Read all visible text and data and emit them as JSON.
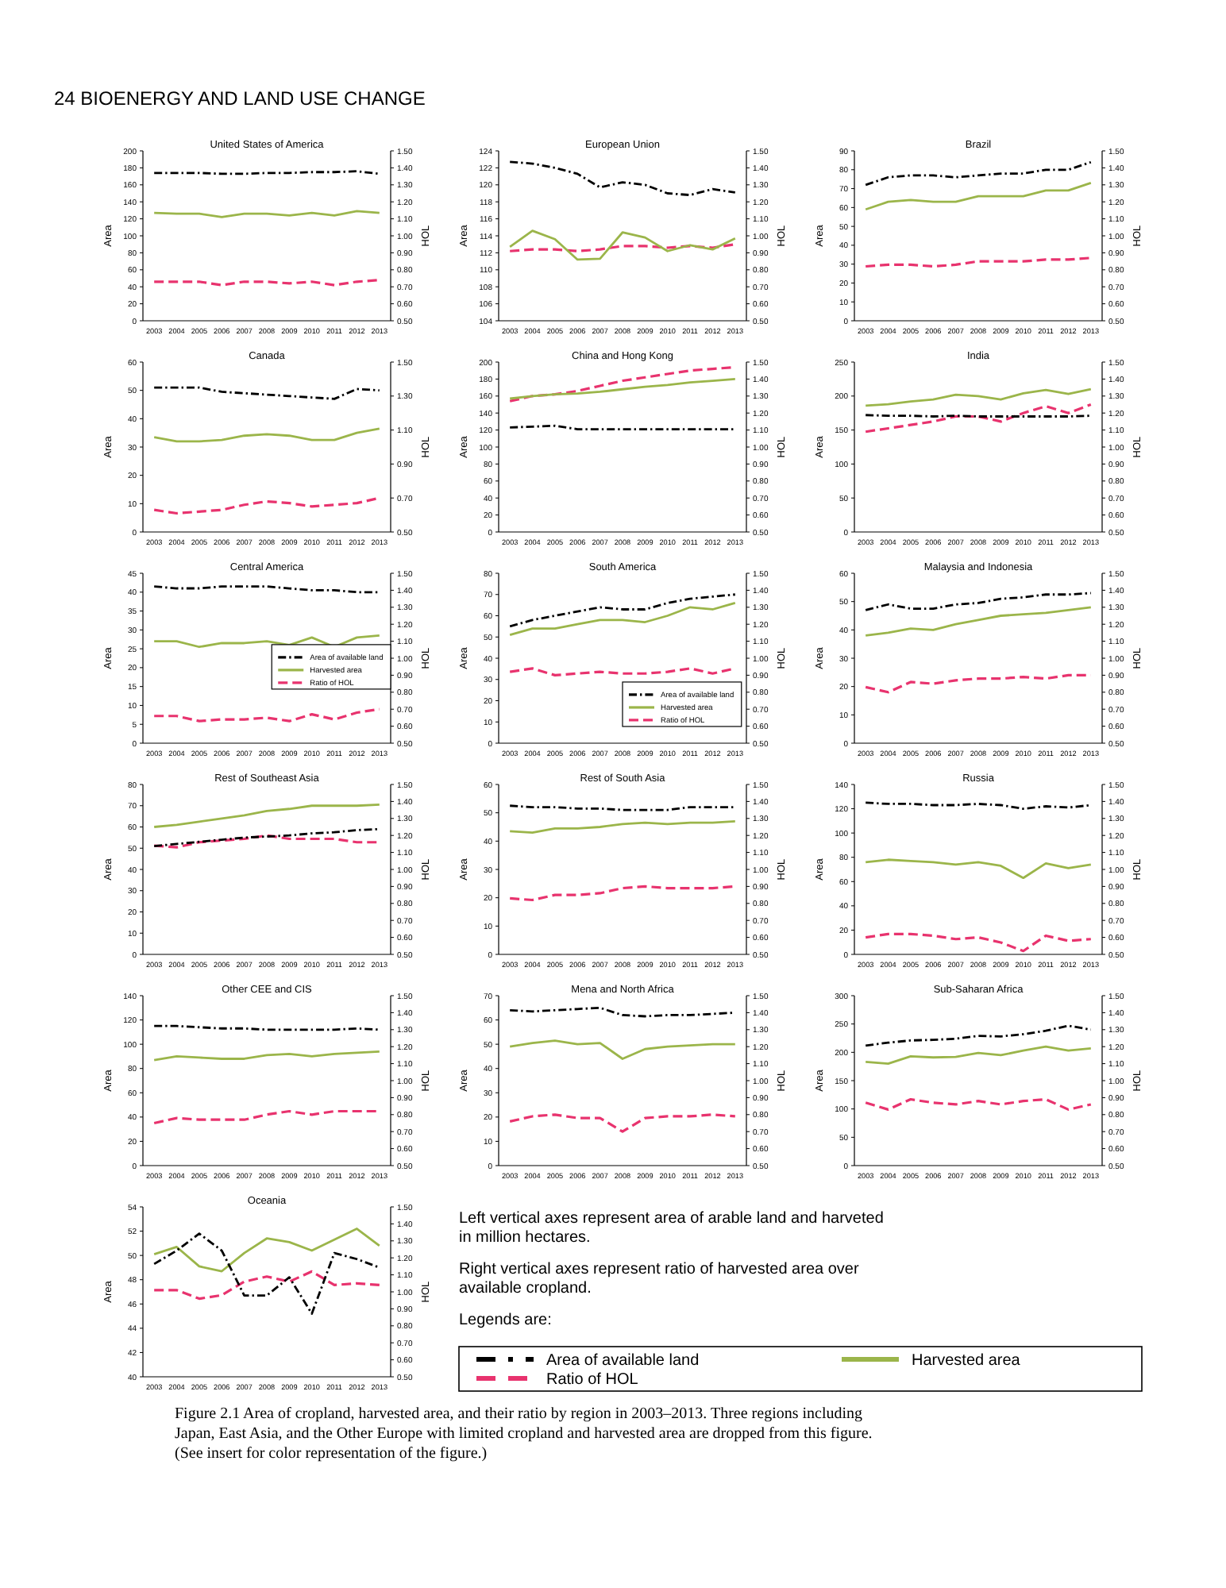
{
  "chart_data": [
    {
      "type": "line",
      "title": "United States of America",
      "categories": [
        "2003",
        "2004",
        "2005",
        "2006",
        "2007",
        "2008",
        "2009",
        "2010",
        "2011",
        "2012",
        "2013"
      ],
      "ylabel": "Area",
      "y2label": "HOL",
      "ylim": [
        0,
        200
      ],
      "yticks": [
        0,
        20,
        40,
        60,
        80,
        100,
        120,
        140,
        160,
        180,
        200
      ],
      "y2lim": [
        0.5,
        1.5
      ],
      "y2ticks": [
        {
          "value": 0.5,
          "label": "0.50"
        },
        {
          "value": 0.6,
          "label": "0.60"
        },
        {
          "value": 0.7,
          "label": "0.70"
        },
        {
          "value": 0.8,
          "label": "0.80"
        },
        {
          "value": 0.9,
          "label": "0.90"
        },
        {
          "value": 1.0,
          "label": "1.00"
        },
        {
          "value": 1.1,
          "label": "1.10"
        },
        {
          "value": 1.2,
          "label": "1.20"
        },
        {
          "value": 1.3,
          "label": "1.30"
        },
        {
          "value": 1.4,
          "label": "1.40"
        },
        {
          "value": 1.5,
          "label": "1.50"
        }
      ],
      "series": [
        {
          "color": "#000000",
          "line_style": "dashdot",
          "values": [
            174,
            174,
            174,
            173,
            173,
            174,
            174,
            175,
            175,
            176,
            173
          ]
        },
        {
          "color": "#9bb54a",
          "line_style": "solid",
          "values": [
            127,
            126,
            126,
            122,
            126,
            126,
            124,
            127,
            124,
            129,
            127
          ]
        },
        {
          "color": "#e8336e",
          "line_style": "dashed",
          "axis": "y2",
          "values": [
            0.73,
            0.73,
            0.73,
            0.71,
            0.73,
            0.73,
            0.72,
            0.73,
            0.71,
            0.73,
            0.74
          ]
        }
      ]
    },
    {
      "type": "line",
      "title": "European Union",
      "categories": [
        "2003",
        "2004",
        "2005",
        "2006",
        "2007",
        "2008",
        "2009",
        "2010",
        "2011",
        "2012",
        "2013"
      ],
      "ylabel": "Area",
      "y2label": "HOL",
      "ylim": [
        104,
        124
      ],
      "yticks": [
        104,
        106,
        108,
        110,
        112,
        114,
        116,
        118,
        120,
        122,
        124
      ],
      "y2lim": [
        0.5,
        1.5
      ],
      "y2ticks": [
        {
          "value": 0.5,
          "label": "0.50"
        },
        {
          "value": 0.6,
          "label": "0.60"
        },
        {
          "value": 0.7,
          "label": "0.70"
        },
        {
          "value": 0.8,
          "label": "0.80"
        },
        {
          "value": 0.9,
          "label": "0.90"
        },
        {
          "value": 1.0,
          "label": "1.00"
        },
        {
          "value": 1.1,
          "label": "1.10"
        },
        {
          "value": 1.2,
          "label": "1.20"
        },
        {
          "value": 1.3,
          "label": "1.30"
        },
        {
          "value": 1.4,
          "label": "1.40"
        },
        {
          "value": 1.5,
          "label": "1.50"
        }
      ],
      "series": [
        {
          "color": "#000000",
          "line_style": "dashdot",
          "values": [
            122.7,
            122.5,
            122,
            121.3,
            119.7,
            120.3,
            120,
            119,
            118.8,
            119.5,
            119.1
          ]
        },
        {
          "color": "#9bb54a",
          "line_style": "solid",
          "values": [
            112.7,
            114.6,
            113.6,
            111.2,
            111.3,
            114.4,
            113.8,
            112.2,
            112.9,
            112.4,
            113.7
          ]
        },
        {
          "color": "#e8336e",
          "line_style": "dashed",
          "axis": "y2",
          "values": [
            0.91,
            0.92,
            0.92,
            0.91,
            0.92,
            0.94,
            0.94,
            0.93,
            0.94,
            0.93,
            0.95
          ]
        }
      ]
    },
    {
      "type": "line",
      "title": "Brazil",
      "categories": [
        "2003",
        "2004",
        "2005",
        "2006",
        "2007",
        "2008",
        "2009",
        "2010",
        "2011",
        "2012",
        "2013"
      ],
      "ylabel": "Area",
      "y2label": "HOL",
      "ylim": [
        0,
        90
      ],
      "yticks": [
        0,
        10,
        20,
        30,
        40,
        50,
        60,
        70,
        80,
        90
      ],
      "y2lim": [
        0.5,
        1.5
      ],
      "y2ticks": [
        {
          "value": 0.5,
          "label": "0.50"
        },
        {
          "value": 0.6,
          "label": "0.60"
        },
        {
          "value": 0.7,
          "label": "0.70"
        },
        {
          "value": 0.8,
          "label": "0.80"
        },
        {
          "value": 0.9,
          "label": "0.90"
        },
        {
          "value": 1.0,
          "label": "1.00"
        },
        {
          "value": 1.1,
          "label": "1.10"
        },
        {
          "value": 1.2,
          "label": "1.20"
        },
        {
          "value": 1.3,
          "label": "1.30"
        },
        {
          "value": 1.4,
          "label": "1.40"
        },
        {
          "value": 1.5,
          "label": "1.50"
        }
      ],
      "series": [
        {
          "color": "#000000",
          "line_style": "dashdot",
          "values": [
            72,
            76,
            77,
            77,
            76,
            77,
            78,
            78,
            80,
            80,
            84
          ]
        },
        {
          "color": "#9bb54a",
          "line_style": "solid",
          "values": [
            59,
            63,
            64,
            63,
            63,
            66,
            66,
            66,
            69,
            69,
            73
          ]
        },
        {
          "color": "#e8336e",
          "line_style": "dashed",
          "axis": "y2",
          "values": [
            0.82,
            0.83,
            0.83,
            0.82,
            0.83,
            0.85,
            0.85,
            0.85,
            0.86,
            0.86,
            0.87
          ]
        }
      ]
    },
    {
      "type": "line",
      "title": "Canada",
      "categories": [
        "2003",
        "2004",
        "2005",
        "2006",
        "2007",
        "2008",
        "2009",
        "2010",
        "2011",
        "2012",
        "2013"
      ],
      "ylabel": "Area",
      "y2label": "HOL",
      "ylim": [
        0,
        60
      ],
      "yticks": [
        0,
        10,
        20,
        30,
        40,
        50,
        60
      ],
      "y2lim": [
        0.5,
        1.5
      ],
      "y2ticks": [
        {
          "value": 0.5,
          "label": "0.50"
        },
        {
          "value": 0.7,
          "label": "0.70"
        },
        {
          "value": 0.9,
          "label": "0.90"
        },
        {
          "value": 1.1,
          "label": "1.10"
        },
        {
          "value": 1.3,
          "label": "1.30"
        },
        {
          "value": 1.5,
          "label": "1.50"
        }
      ],
      "series": [
        {
          "color": "#000000",
          "line_style": "dashdot",
          "values": [
            51,
            51,
            51,
            49.5,
            49,
            48.5,
            48,
            47.5,
            47,
            50.5,
            50
          ]
        },
        {
          "color": "#9bb54a",
          "line_style": "solid",
          "values": [
            33.5,
            32,
            32,
            32.5,
            34,
            34.5,
            34,
            32.5,
            32.5,
            35,
            36.5
          ]
        },
        {
          "color": "#e8336e",
          "line_style": "dashed",
          "axis": "y2",
          "values": [
            0.63,
            0.61,
            0.62,
            0.63,
            0.66,
            0.68,
            0.67,
            0.65,
            0.66,
            0.67,
            0.7
          ]
        }
      ]
    },
    {
      "type": "line",
      "title": "China and Hong Kong",
      "categories": [
        "2003",
        "2004",
        "2005",
        "2006",
        "2007",
        "2008",
        "2009",
        "2010",
        "2011",
        "2012",
        "2013"
      ],
      "ylabel": "Area",
      "y2label": "HOL",
      "ylim": [
        0,
        200
      ],
      "yticks": [
        0,
        20,
        40,
        60,
        80,
        100,
        120,
        140,
        160,
        180,
        200
      ],
      "y2lim": [
        0.5,
        1.5
      ],
      "y2ticks": [
        {
          "value": 0.5,
          "label": "0.50"
        },
        {
          "value": 0.6,
          "label": "0.60"
        },
        {
          "value": 0.7,
          "label": "0.70"
        },
        {
          "value": 0.8,
          "label": "0.80"
        },
        {
          "value": 0.9,
          "label": "0.90"
        },
        {
          "value": 1.0,
          "label": "1.00"
        },
        {
          "value": 1.1,
          "label": "1.10"
        },
        {
          "value": 1.2,
          "label": "1.20"
        },
        {
          "value": 1.3,
          "label": "1.30"
        },
        {
          "value": 1.4,
          "label": "1.40"
        },
        {
          "value": 1.5,
          "label": "1.50"
        }
      ],
      "series": [
        {
          "color": "#000000",
          "line_style": "dashdot",
          "values": [
            123,
            124,
            125,
            121,
            121,
            121,
            121,
            121,
            121,
            121,
            121
          ]
        },
        {
          "color": "#9bb54a",
          "line_style": "solid",
          "values": [
            157,
            160,
            162,
            163,
            165,
            168,
            171,
            173,
            176,
            178,
            180
          ]
        },
        {
          "color": "#e8336e",
          "line_style": "dashed",
          "axis": "y2",
          "values": [
            1.27,
            1.3,
            1.31,
            1.33,
            1.36,
            1.39,
            1.41,
            1.43,
            1.45,
            1.46,
            1.47
          ]
        }
      ]
    },
    {
      "type": "line",
      "title": "India",
      "categories": [
        "2003",
        "2004",
        "2005",
        "2006",
        "2007",
        "2008",
        "2009",
        "2010",
        "2011",
        "2012",
        "2013"
      ],
      "ylabel": "Area",
      "y2label": "HOL",
      "ylim": [
        0,
        250
      ],
      "yticks": [
        0,
        50,
        100,
        150,
        200,
        250
      ],
      "y2lim": [
        0.5,
        1.5
      ],
      "y2ticks": [
        {
          "value": 0.5,
          "label": "0.50"
        },
        {
          "value": 0.6,
          "label": "0.60"
        },
        {
          "value": 0.7,
          "label": "0.70"
        },
        {
          "value": 0.8,
          "label": "0.80"
        },
        {
          "value": 0.9,
          "label": "0.90"
        },
        {
          "value": 1.0,
          "label": "1.00"
        },
        {
          "value": 1.1,
          "label": "1.10"
        },
        {
          "value": 1.2,
          "label": "1.20"
        },
        {
          "value": 1.3,
          "label": "1.30"
        },
        {
          "value": 1.4,
          "label": "1.40"
        },
        {
          "value": 1.5,
          "label": "1.50"
        }
      ],
      "series": [
        {
          "color": "#000000",
          "line_style": "dashdot",
          "values": [
            172,
            171,
            171,
            170,
            171,
            170,
            170,
            170,
            170,
            170,
            171
          ]
        },
        {
          "color": "#9bb54a",
          "line_style": "solid",
          "values": [
            186,
            188,
            192,
            195,
            202,
            200,
            195,
            204,
            209,
            203,
            210
          ]
        },
        {
          "color": "#e8336e",
          "line_style": "dashed",
          "axis": "y2",
          "values": [
            1.09,
            1.11,
            1.13,
            1.15,
            1.18,
            1.18,
            1.15,
            1.2,
            1.24,
            1.2,
            1.25
          ]
        }
      ]
    },
    {
      "type": "line",
      "title": "Central America",
      "categories": [
        "2003",
        "2004",
        "2005",
        "2006",
        "2007",
        "2008",
        "2009",
        "2010",
        "2011",
        "2012",
        "2013"
      ],
      "ylabel": "Area",
      "y2label": "HOL",
      "ylim": [
        0,
        45
      ],
      "yticks": [
        0,
        5,
        10,
        15,
        20,
        25,
        30,
        35,
        40,
        45
      ],
      "y2lim": [
        0.5,
        1.5
      ],
      "y2ticks": [
        {
          "value": 0.5,
          "label": "0.50"
        },
        {
          "value": 0.6,
          "label": "0.60"
        },
        {
          "value": 0.7,
          "label": "0.70"
        },
        {
          "value": 0.8,
          "label": "0.80"
        },
        {
          "value": 0.9,
          "label": "0.90"
        },
        {
          "value": 1.0,
          "label": "1.00"
        },
        {
          "value": 1.1,
          "label": "1.10"
        },
        {
          "value": 1.2,
          "label": "1.20"
        },
        {
          "value": 1.3,
          "label": "1.30"
        },
        {
          "value": 1.4,
          "label": "1.40"
        },
        {
          "value": 1.5,
          "label": "1.50"
        }
      ],
      "legend": "center right",
      "series": [
        {
          "name": "Area of available land",
          "color": "#000000",
          "line_style": "dashdot",
          "values": [
            41.5,
            41,
            41,
            41.5,
            41.5,
            41.5,
            41,
            40.5,
            40.5,
            40,
            40
          ]
        },
        {
          "name": "Harvested area",
          "color": "#9bb54a",
          "line_style": "solid",
          "values": [
            27,
            27,
            25.5,
            26.5,
            26.5,
            27,
            26,
            28,
            25.5,
            28,
            28.5
          ]
        },
        {
          "name": "Ratio of HOL",
          "color": "#e8336e",
          "line_style": "dashed",
          "axis": "y2",
          "values": [
            0.66,
            0.66,
            0.63,
            0.64,
            0.64,
            0.65,
            0.63,
            0.67,
            0.64,
            0.68,
            0.7
          ]
        }
      ]
    },
    {
      "type": "line",
      "title": "South America",
      "categories": [
        "2003",
        "2004",
        "2005",
        "2006",
        "2007",
        "2008",
        "2009",
        "2010",
        "2011",
        "2012",
        "2013"
      ],
      "ylabel": "Area",
      "y2label": "HOL",
      "ylim": [
        0,
        80
      ],
      "yticks": [
        0,
        10,
        20,
        30,
        40,
        50,
        60,
        70,
        80
      ],
      "y2lim": [
        0.5,
        1.5
      ],
      "y2ticks": [
        {
          "value": 0.5,
          "label": "0.50"
        },
        {
          "value": 0.6,
          "label": "0.60"
        },
        {
          "value": 0.7,
          "label": "0.70"
        },
        {
          "value": 0.8,
          "label": "0.80"
        },
        {
          "value": 0.9,
          "label": "0.90"
        },
        {
          "value": 1.0,
          "label": "1.00"
        },
        {
          "value": 1.1,
          "label": "1.10"
        },
        {
          "value": 1.2,
          "label": "1.20"
        },
        {
          "value": 1.3,
          "label": "1.30"
        },
        {
          "value": 1.4,
          "label": "1.40"
        },
        {
          "value": 1.5,
          "label": "1.50"
        }
      ],
      "legend": "bottom right",
      "series": [
        {
          "name": "Area of available land",
          "color": "#000000",
          "line_style": "dashdot",
          "values": [
            55,
            58,
            60,
            62,
            64,
            63,
            63,
            66,
            68,
            69,
            70
          ]
        },
        {
          "name": "Harvested area",
          "color": "#9bb54a",
          "line_style": "solid",
          "values": [
            51,
            54,
            54,
            56,
            58,
            58,
            57,
            60,
            64,
            63,
            66
          ]
        },
        {
          "name": "Ratio of HOL",
          "color": "#e8336e",
          "line_style": "dashed",
          "axis": "y2",
          "values": [
            0.92,
            0.94,
            0.9,
            0.91,
            0.92,
            0.91,
            0.91,
            0.92,
            0.94,
            0.91,
            0.94
          ]
        }
      ]
    },
    {
      "type": "line",
      "title": "Malaysia and Indonesia",
      "categories": [
        "2003",
        "2004",
        "2005",
        "2006",
        "2007",
        "2008",
        "2009",
        "2010",
        "2011",
        "2012",
        "2013"
      ],
      "ylabel": "Area",
      "y2label": "HOL",
      "ylim": [
        0,
        60
      ],
      "yticks": [
        0,
        10,
        20,
        30,
        40,
        50,
        60
      ],
      "y2lim": [
        0.5,
        1.5
      ],
      "y2ticks": [
        {
          "value": 0.5,
          "label": "0.50"
        },
        {
          "value": 0.6,
          "label": "0.60"
        },
        {
          "value": 0.7,
          "label": "0.70"
        },
        {
          "value": 0.8,
          "label": "0.80"
        },
        {
          "value": 0.9,
          "label": "0.90"
        },
        {
          "value": 1.0,
          "label": "1.00"
        },
        {
          "value": 1.1,
          "label": "1.10"
        },
        {
          "value": 1.2,
          "label": "1.20"
        },
        {
          "value": 1.3,
          "label": "1.30"
        },
        {
          "value": 1.4,
          "label": "1.40"
        },
        {
          "value": 1.5,
          "label": "1.50"
        }
      ],
      "series": [
        {
          "color": "#000000",
          "line_style": "dashdot",
          "values": [
            47,
            49,
            47.5,
            47.5,
            49,
            49.5,
            51,
            51.5,
            52.5,
            52.5,
            53
          ]
        },
        {
          "color": "#9bb54a",
          "line_style": "solid",
          "values": [
            38,
            39,
            40.5,
            40,
            42,
            43.5,
            45,
            45.5,
            46,
            47,
            48
          ]
        },
        {
          "color": "#e8336e",
          "line_style": "dashed",
          "axis": "y2",
          "values": [
            0.83,
            0.8,
            0.86,
            0.85,
            0.87,
            0.88,
            0.88,
            0.89,
            0.88,
            0.9,
            0.9
          ]
        }
      ]
    },
    {
      "type": "line",
      "title": "Rest of Southeast Asia",
      "categories": [
        "2003",
        "2004",
        "2005",
        "2006",
        "2007",
        "2008",
        "2009",
        "2010",
        "2011",
        "2012",
        "2013"
      ],
      "ylabel": "Area",
      "y2label": "HOL",
      "ylim": [
        0,
        80
      ],
      "yticks": [
        0,
        10,
        20,
        30,
        40,
        50,
        60,
        70,
        80
      ],
      "y2lim": [
        0.5,
        1.5
      ],
      "y2ticks": [
        {
          "value": 0.5,
          "label": "0.50"
        },
        {
          "value": 0.6,
          "label": "0.60"
        },
        {
          "value": 0.7,
          "label": "0.70"
        },
        {
          "value": 0.8,
          "label": "0.80"
        },
        {
          "value": 0.9,
          "label": "0.90"
        },
        {
          "value": 1.0,
          "label": "1.00"
        },
        {
          "value": 1.1,
          "label": "1.10"
        },
        {
          "value": 1.2,
          "label": "1.20"
        },
        {
          "value": 1.3,
          "label": "1.30"
        },
        {
          "value": 1.4,
          "label": "1.40"
        },
        {
          "value": 1.5,
          "label": "1.50"
        }
      ],
      "series": [
        {
          "color": "#000000",
          "line_style": "dashdot",
          "values": [
            51,
            52,
            53,
            54,
            55,
            55.5,
            56,
            57,
            57.5,
            58.5,
            59
          ]
        },
        {
          "color": "#9bb54a",
          "line_style": "solid",
          "values": [
            60,
            61,
            62.5,
            64,
            65.5,
            67.5,
            68.5,
            70,
            70,
            70,
            70.5
          ]
        },
        {
          "color": "#e8336e",
          "line_style": "dashed",
          "axis": "y2",
          "values": [
            1.14,
            1.13,
            1.16,
            1.17,
            1.18,
            1.2,
            1.18,
            1.18,
            1.18,
            1.16,
            1.16
          ]
        }
      ]
    },
    {
      "type": "line",
      "title": "Rest of South Asia",
      "categories": [
        "2003",
        "2004",
        "2005",
        "2006",
        "2007",
        "2008",
        "2009",
        "2010",
        "2011",
        "2012",
        "2013"
      ],
      "ylabel": "Area",
      "y2label": "HOL",
      "ylim": [
        0,
        60
      ],
      "yticks": [
        0,
        10,
        20,
        30,
        40,
        50,
        60
      ],
      "y2lim": [
        0.5,
        1.5
      ],
      "y2ticks": [
        {
          "value": 0.5,
          "label": "0.50"
        },
        {
          "value": 0.6,
          "label": "0.60"
        },
        {
          "value": 0.7,
          "label": "0.70"
        },
        {
          "value": 0.8,
          "label": "0.80"
        },
        {
          "value": 0.9,
          "label": "0.90"
        },
        {
          "value": 1.0,
          "label": "1.00"
        },
        {
          "value": 1.1,
          "label": "1.10"
        },
        {
          "value": 1.2,
          "label": "1.20"
        },
        {
          "value": 1.3,
          "label": "1.30"
        },
        {
          "value": 1.4,
          "label": "1.40"
        },
        {
          "value": 1.5,
          "label": "1.50"
        }
      ],
      "series": [
        {
          "color": "#000000",
          "line_style": "dashdot",
          "values": [
            52.5,
            52,
            52,
            51.5,
            51.5,
            51,
            51,
            51,
            52,
            52,
            52
          ]
        },
        {
          "color": "#9bb54a",
          "line_style": "solid",
          "values": [
            43.5,
            43,
            44.5,
            44.5,
            45,
            46,
            46.5,
            46,
            46.5,
            46.5,
            47
          ]
        },
        {
          "color": "#e8336e",
          "line_style": "dashed",
          "axis": "y2",
          "values": [
            0.83,
            0.82,
            0.85,
            0.85,
            0.86,
            0.89,
            0.9,
            0.89,
            0.89,
            0.89,
            0.9
          ]
        }
      ]
    },
    {
      "type": "line",
      "title": "Russia",
      "categories": [
        "2003",
        "2004",
        "2005",
        "2006",
        "2007",
        "2008",
        "2009",
        "2010",
        "2011",
        "2012",
        "2013"
      ],
      "ylabel": "Area",
      "y2label": "HOL",
      "ylim": [
        0,
        140
      ],
      "yticks": [
        0,
        20,
        40,
        60,
        80,
        100,
        120,
        140
      ],
      "y2lim": [
        0.5,
        1.5
      ],
      "y2ticks": [
        {
          "value": 0.5,
          "label": "0.50"
        },
        {
          "value": 0.6,
          "label": "0.60"
        },
        {
          "value": 0.7,
          "label": "0.70"
        },
        {
          "value": 0.8,
          "label": "0.80"
        },
        {
          "value": 0.9,
          "label": "0.90"
        },
        {
          "value": 1.0,
          "label": "1.00"
        },
        {
          "value": 1.1,
          "label": "1.10"
        },
        {
          "value": 1.2,
          "label": "1.20"
        },
        {
          "value": 1.3,
          "label": "1.30"
        },
        {
          "value": 1.4,
          "label": "1.40"
        },
        {
          "value": 1.5,
          "label": "1.50"
        }
      ],
      "series": [
        {
          "color": "#000000",
          "line_style": "dashdot",
          "values": [
            125,
            124,
            124,
            123,
            123,
            124,
            123,
            120,
            122,
            121,
            123
          ]
        },
        {
          "color": "#9bb54a",
          "line_style": "solid",
          "values": [
            76,
            78,
            77,
            76,
            74,
            76,
            73,
            63,
            75,
            71,
            74
          ]
        },
        {
          "color": "#e8336e",
          "line_style": "dashed",
          "axis": "y2",
          "values": [
            0.6,
            0.62,
            0.62,
            0.61,
            0.59,
            0.6,
            0.57,
            0.52,
            0.61,
            0.58,
            0.59
          ]
        }
      ]
    },
    {
      "type": "line",
      "title": "Other CEE and CIS",
      "categories": [
        "2003",
        "2004",
        "2005",
        "2006",
        "2007",
        "2008",
        "2009",
        "2010",
        "2011",
        "2012",
        "2013"
      ],
      "ylabel": "Area",
      "y2label": "HOL",
      "ylim": [
        0,
        140
      ],
      "yticks": [
        0,
        20,
        40,
        60,
        80,
        100,
        120,
        140
      ],
      "y2lim": [
        0.5,
        1.5
      ],
      "y2ticks": [
        {
          "value": 0.5,
          "label": "0.50"
        },
        {
          "value": 0.6,
          "label": "0.60"
        },
        {
          "value": 0.7,
          "label": "0.70"
        },
        {
          "value": 0.8,
          "label": "0.80"
        },
        {
          "value": 0.9,
          "label": "0.90"
        },
        {
          "value": 1.0,
          "label": "1.00"
        },
        {
          "value": 1.1,
          "label": "1.10"
        },
        {
          "value": 1.2,
          "label": "1.20"
        },
        {
          "value": 1.3,
          "label": "1.30"
        },
        {
          "value": 1.4,
          "label": "1.40"
        },
        {
          "value": 1.5,
          "label": "1.50"
        }
      ],
      "series": [
        {
          "color": "#000000",
          "line_style": "dashdot",
          "values": [
            115,
            115,
            114,
            113,
            113,
            112,
            112,
            112,
            112,
            113,
            112
          ]
        },
        {
          "color": "#9bb54a",
          "line_style": "solid",
          "values": [
            87,
            90,
            89,
            88,
            88,
            91,
            92,
            90,
            92,
            93,
            94
          ]
        },
        {
          "color": "#e8336e",
          "line_style": "dashed",
          "axis": "y2",
          "values": [
            0.75,
            0.78,
            0.77,
            0.77,
            0.77,
            0.8,
            0.82,
            0.8,
            0.82,
            0.82,
            0.82
          ]
        }
      ]
    },
    {
      "type": "line",
      "title": "Mena and North Africa",
      "categories": [
        "2003",
        "2004",
        "2005",
        "2006",
        "2007",
        "2008",
        "2009",
        "2010",
        "2011",
        "2012",
        "2013"
      ],
      "ylabel": "Area",
      "y2label": "HOL",
      "ylim": [
        0,
        70
      ],
      "yticks": [
        0,
        10,
        20,
        30,
        40,
        50,
        60,
        70
      ],
      "y2lim": [
        0.5,
        1.5
      ],
      "y2ticks": [
        {
          "value": 0.5,
          "label": "0.50"
        },
        {
          "value": 0.6,
          "label": "0.60"
        },
        {
          "value": 0.7,
          "label": "0.70"
        },
        {
          "value": 0.8,
          "label": "0.80"
        },
        {
          "value": 0.9,
          "label": "0.90"
        },
        {
          "value": 1.0,
          "label": "1.00"
        },
        {
          "value": 1.1,
          "label": "1.10"
        },
        {
          "value": 1.2,
          "label": "1.20"
        },
        {
          "value": 1.3,
          "label": "1.30"
        },
        {
          "value": 1.4,
          "label": "1.40"
        },
        {
          "value": 1.5,
          "label": "1.50"
        }
      ],
      "series": [
        {
          "color": "#000000",
          "line_style": "dashdot",
          "values": [
            64,
            63.5,
            64,
            64.5,
            65,
            62,
            61.5,
            62,
            62,
            62.5,
            63
          ]
        },
        {
          "color": "#9bb54a",
          "line_style": "solid",
          "values": [
            49,
            50.5,
            51.5,
            50,
            50.5,
            44,
            48,
            49,
            49.5,
            50,
            50
          ]
        },
        {
          "color": "#e8336e",
          "line_style": "dashed",
          "axis": "y2",
          "values": [
            0.76,
            0.79,
            0.8,
            0.78,
            0.78,
            0.7,
            0.78,
            0.79,
            0.79,
            0.8,
            0.79
          ]
        }
      ]
    },
    {
      "type": "line",
      "title": "Sub-Saharan Africa",
      "categories": [
        "2003",
        "2004",
        "2005",
        "2006",
        "2007",
        "2008",
        "2009",
        "2010",
        "2011",
        "2012",
        "2013"
      ],
      "ylabel": "Area",
      "y2label": "HOL",
      "ylim": [
        0,
        300
      ],
      "yticks": [
        0,
        50,
        100,
        150,
        200,
        250,
        300
      ],
      "y2lim": [
        0.5,
        1.5
      ],
      "y2ticks": [
        {
          "value": 0.5,
          "label": "0.50"
        },
        {
          "value": 0.6,
          "label": "0.60"
        },
        {
          "value": 0.7,
          "label": "0.70"
        },
        {
          "value": 0.8,
          "label": "0.80"
        },
        {
          "value": 0.9,
          "label": "0.90"
        },
        {
          "value": 1.0,
          "label": "1.00"
        },
        {
          "value": 1.1,
          "label": "1.10"
        },
        {
          "value": 1.2,
          "label": "1.20"
        },
        {
          "value": 1.3,
          "label": "1.30"
        },
        {
          "value": 1.4,
          "label": "1.40"
        },
        {
          "value": 1.5,
          "label": "1.50"
        }
      ],
      "series": [
        {
          "color": "#000000",
          "line_style": "dashdot",
          "values": [
            212,
            217,
            221,
            222,
            224,
            229,
            228,
            232,
            238,
            247,
            240
          ]
        },
        {
          "color": "#9bb54a",
          "line_style": "solid",
          "values": [
            183,
            180,
            193,
            191,
            192,
            199,
            195,
            203,
            210,
            203,
            207
          ]
        },
        {
          "color": "#e8336e",
          "line_style": "dashed",
          "axis": "y2",
          "values": [
            0.87,
            0.83,
            0.89,
            0.87,
            0.86,
            0.88,
            0.86,
            0.88,
            0.89,
            0.83,
            0.86
          ]
        }
      ]
    },
    {
      "type": "line",
      "title": "Oceania",
      "categories": [
        "2003",
        "2004",
        "2005",
        "2006",
        "2007",
        "2008",
        "2009",
        "2010",
        "2011",
        "2012",
        "2013"
      ],
      "ylabel": "Area",
      "y2label": "HOL",
      "ylim": [
        40,
        54
      ],
      "yticks": [
        40,
        42,
        44,
        46,
        48,
        50,
        52,
        54
      ],
      "y2lim": [
        0.5,
        1.5
      ],
      "y2ticks": [
        {
          "value": 0.5,
          "label": "0.50"
        },
        {
          "value": 0.6,
          "label": "0.60"
        },
        {
          "value": 0.7,
          "label": "0.70"
        },
        {
          "value": 0.8,
          "label": "0.80"
        },
        {
          "value": 0.9,
          "label": "0.90"
        },
        {
          "value": 1.0,
          "label": "1.00"
        },
        {
          "value": 1.1,
          "label": "1.10"
        },
        {
          "value": 1.2,
          "label": "1.20"
        },
        {
          "value": 1.3,
          "label": "1.30"
        },
        {
          "value": 1.4,
          "label": "1.40"
        },
        {
          "value": 1.5,
          "label": "1.50"
        }
      ],
      "series": [
        {
          "color": "#000000",
          "line_style": "dashdot",
          "values": [
            49.3,
            50.4,
            51.8,
            50.4,
            46.7,
            46.7,
            48.2,
            45.2,
            50.2,
            49.7,
            49.0
          ]
        },
        {
          "color": "#9bb54a",
          "line_style": "solid",
          "values": [
            50.1,
            50.7,
            49.1,
            48.7,
            50.2,
            51.4,
            51.1,
            50.4,
            51.3,
            52.2,
            50.8
          ]
        },
        {
          "color": "#e8336e",
          "line_style": "dashed",
          "axis": "y2",
          "values": [
            1.01,
            1.01,
            0.96,
            0.98,
            1.06,
            1.09,
            1.06,
            1.12,
            1.04,
            1.05,
            1.04
          ]
        }
      ]
    },
    {
      "type": "other",
      "legend": "bottom",
      "annotations": [
        "24 BIOENERGY AND LAND USE CHANGE",
        "Left vertical axes represent area of arable land and harveted in million hectares.",
        "Right vertical axes represent ratio of harvested area over available cropland.",
        "Legends are:",
        "Figure 2.1 Area of cropland, harvested area, and their ratio by region in 2003–2013. Three regions including Japan, East Asia, and the Other Europe with limited cropland and harvested area are dropped from this figure. (See insert for color representation of the figure.)"
      ],
      "series": [
        {
          "name": "Area of available land",
          "color": "#000000",
          "line_style": "dashdot"
        },
        {
          "name": "Ratio of HOL",
          "color": "#e8336e",
          "line_style": "dashed"
        },
        {
          "name": "Harvested area",
          "color": "#9bb54a",
          "line_style": "solid"
        }
      ]
    }
  ]
}
